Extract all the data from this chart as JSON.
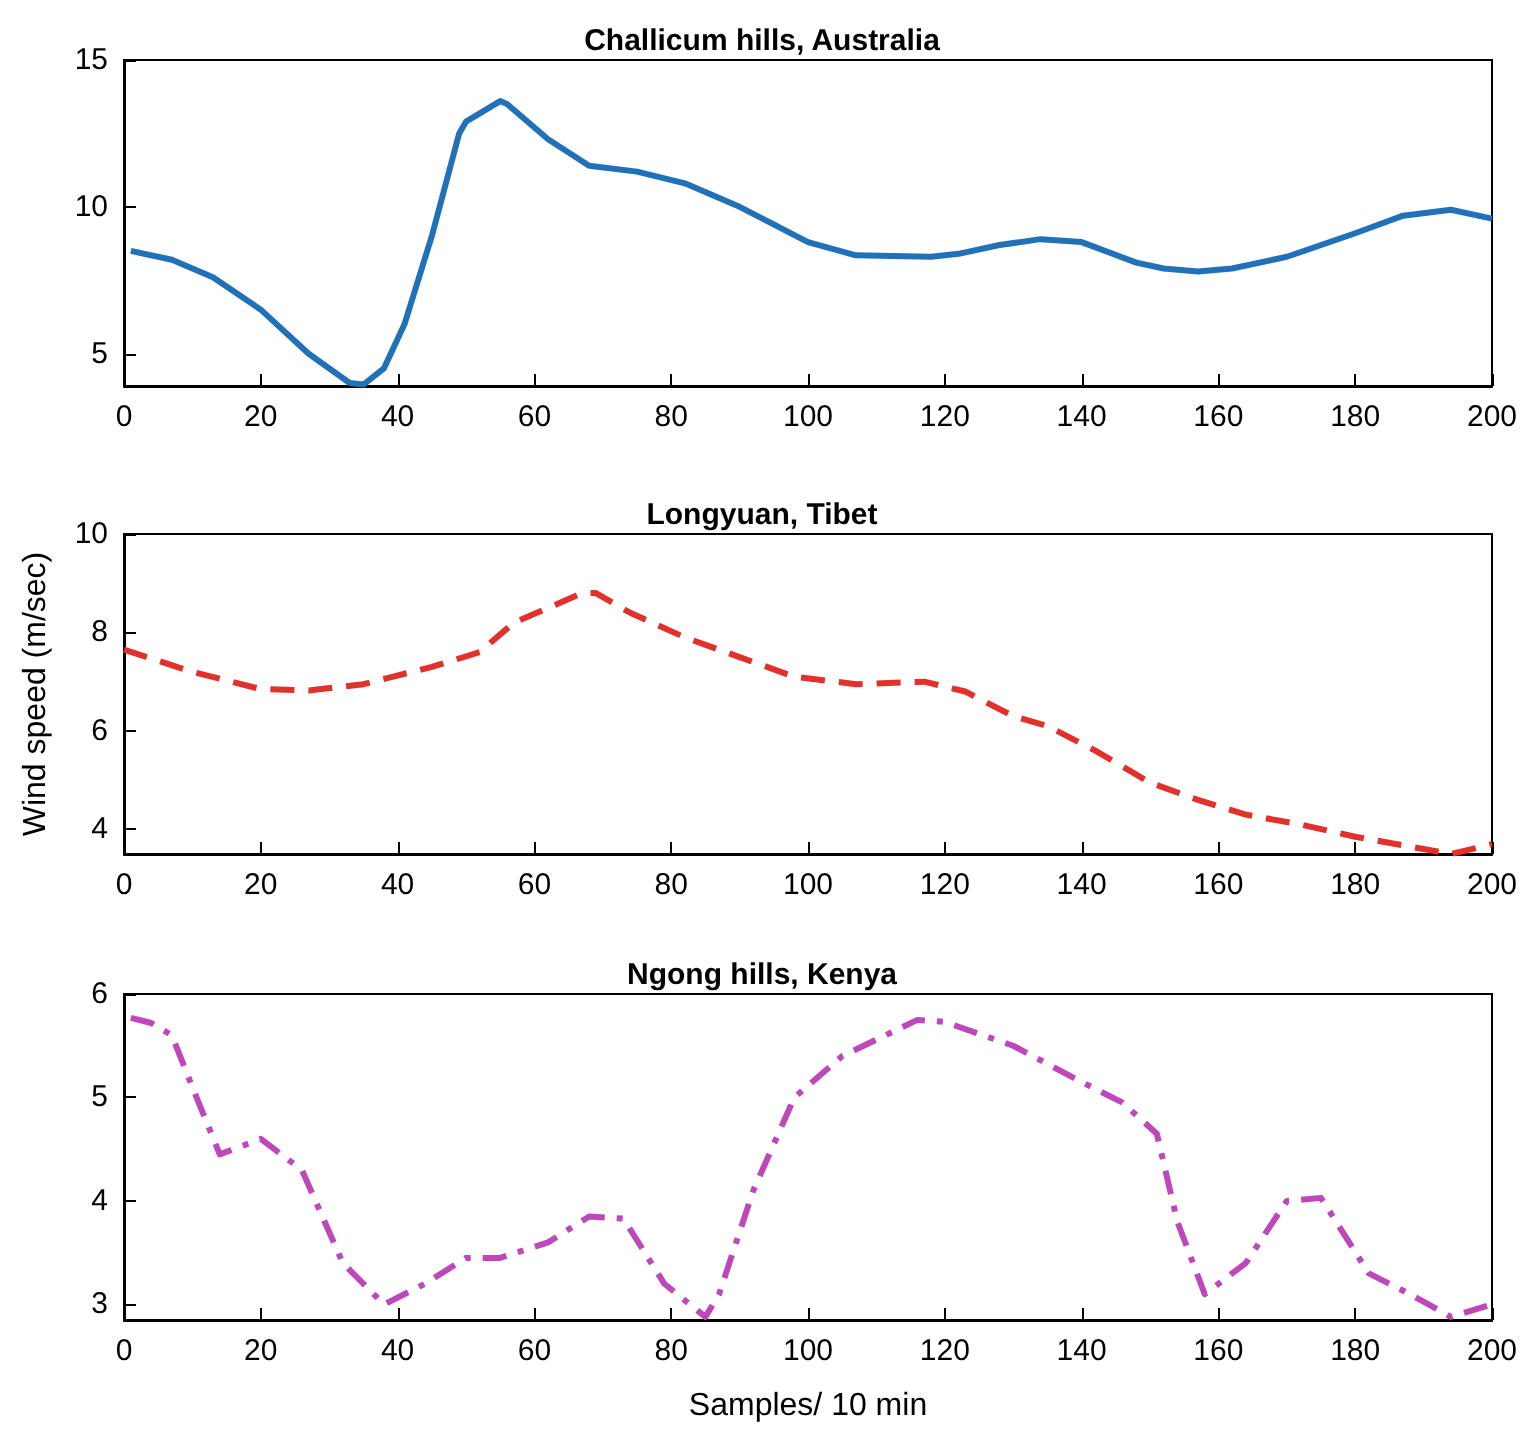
{
  "chart_data": [
    {
      "type": "line",
      "title": "Challicum hills, Australia",
      "line_style": "solid",
      "grid": false,
      "xlim": [
        0,
        200
      ],
      "xticks": [
        0,
        20,
        40,
        60,
        80,
        100,
        120,
        140,
        160,
        180,
        200
      ],
      "ylim": [
        3.9,
        15
      ],
      "yticks": [
        5,
        10,
        15
      ],
      "series": [
        {
          "color": "#2171b9",
          "x": [
            1,
            7,
            13,
            20,
            27,
            33,
            35,
            38,
            41,
            45,
            49,
            50,
            55,
            56,
            62,
            68,
            75,
            82,
            90,
            100,
            107,
            118,
            122,
            128,
            134,
            140,
            148,
            152,
            157,
            162,
            170,
            180,
            187,
            194,
            200
          ],
          "values": [
            8.5,
            8.2,
            7.6,
            6.5,
            5.0,
            4.0,
            3.95,
            4.5,
            6,
            9,
            12.5,
            12.9,
            13.6,
            13.5,
            12.3,
            11.4,
            11.2,
            10.8,
            10.0,
            8.8,
            8.35,
            8.3,
            8.4,
            8.7,
            8.9,
            8.8,
            8.1,
            7.9,
            7.8,
            7.9,
            8.3,
            9.1,
            9.7,
            9.9,
            9.6
          ]
        }
      ]
    },
    {
      "type": "line",
      "title": "Longyuan, Tibet",
      "ylabel": "Wind speed (m/sec)",
      "line_style": "dashed",
      "grid": false,
      "xlim": [
        0,
        200
      ],
      "xticks": [
        0,
        20,
        40,
        60,
        80,
        100,
        120,
        140,
        160,
        180,
        200
      ],
      "ylim": [
        3.5,
        10
      ],
      "yticks": [
        4,
        6,
        8,
        10
      ],
      "series": [
        {
          "color": "#e2302a",
          "x": [
            0,
            10,
            20,
            27,
            35,
            45,
            52,
            57,
            62,
            67,
            69,
            74,
            82,
            90,
            98,
            107,
            117,
            123,
            130,
            135,
            142,
            150,
            157,
            164,
            172,
            180,
            190,
            194,
            200
          ],
          "values": [
            7.65,
            7.2,
            6.85,
            6.82,
            6.95,
            7.3,
            7.6,
            8.2,
            8.5,
            8.8,
            8.8,
            8.4,
            7.9,
            7.5,
            7.1,
            6.95,
            7.0,
            6.8,
            6.3,
            6.1,
            5.6,
            4.95,
            4.6,
            4.3,
            4.1,
            3.85,
            3.6,
            3.5,
            3.7
          ]
        }
      ]
    },
    {
      "type": "line",
      "title": "Ngong hills, Kenya",
      "xlabel": "Samples/ 10 min",
      "line_style": "dashdot",
      "grid": false,
      "xlim": [
        0,
        200
      ],
      "xticks": [
        0,
        20,
        40,
        60,
        80,
        100,
        120,
        140,
        160,
        180,
        200
      ],
      "ylim": [
        2.85,
        6
      ],
      "yticks": [
        3,
        4,
        5,
        6
      ],
      "series": [
        {
          "color": "#bd47bb",
          "x": [
            1,
            4,
            7,
            10,
            14,
            20,
            23,
            26,
            32,
            38,
            44,
            50,
            55,
            62,
            68,
            73,
            79,
            85,
            87,
            92,
            98,
            105,
            116,
            120,
            130,
            140,
            146,
            151,
            154,
            158,
            164,
            170,
            175,
            182,
            188,
            194,
            200
          ],
          "values": [
            5.77,
            5.72,
            5.6,
            5.1,
            4.45,
            4.6,
            4.45,
            4.3,
            3.4,
            3.0,
            3.2,
            3.45,
            3.45,
            3.6,
            3.85,
            3.83,
            3.2,
            2.88,
            3.1,
            4.1,
            5.0,
            5.4,
            5.75,
            5.73,
            5.5,
            5.15,
            4.95,
            4.65,
            3.8,
            3.1,
            3.4,
            4.0,
            4.03,
            3.3,
            3.1,
            2.88,
            3.0
          ]
        }
      ]
    }
  ]
}
